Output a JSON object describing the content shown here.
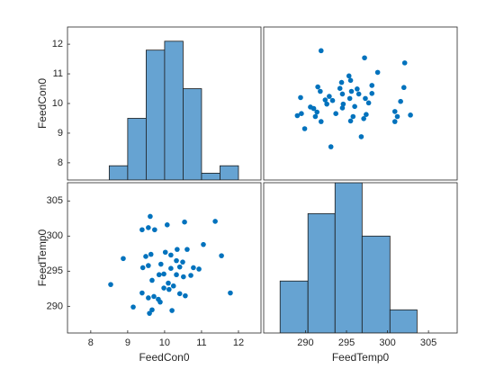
{
  "chart_data": [
    {
      "type": "histogram",
      "ylabel": "FeedCon0",
      "color": "#66a3d2",
      "bins": [
        8.5,
        9,
        9.5,
        10,
        10.5,
        11,
        11.5,
        12
      ],
      "values": [
        7.9,
        9.5,
        11.8,
        12.1,
        10.5,
        7.65,
        7.9
      ],
      "xlim": [
        7.37,
        12.61
      ],
      "ylim": [
        7.42,
        12.58
      ],
      "yticks": [
        8,
        9,
        10,
        11,
        12
      ]
    },
    {
      "type": "scatter",
      "color": "#0072bd",
      "x": [
        302.8,
        302.1,
        300.9,
        301.2,
        300.9,
        301.6,
        302.0,
        298.1,
        298.1,
        298.8,
        297.2,
        296.8,
        297.1,
        297.4,
        297.7,
        297.3,
        296.5,
        296.3,
        295.5,
        295.8,
        296.0,
        295.4,
        295.6,
        295.5,
        295.3,
        294.5,
        294.6,
        294.5,
        294.2,
        294.4,
        293.7,
        293.1,
        293.3,
        292.9,
        292.6,
        292.4,
        291.9,
        291.8,
        291.5,
        291.9,
        291.2,
        291.4,
        290.6,
        289.9,
        289.0,
        289.5,
        289.4,
        291.0
      ],
      "y": [
        9.61,
        11.37,
        9.39,
        9.56,
        9.73,
        10.07,
        10.54,
        10.34,
        10.61,
        11.05,
        11.54,
        8.88,
        9.49,
        9.63,
        10.02,
        10.17,
        10.32,
        10.49,
        9.41,
        9.56,
        9.9,
        10.17,
        10.41,
        10.78,
        10.93,
        9.85,
        9.98,
        10.32,
        10.51,
        10.71,
        9.66,
        8.54,
        10.1,
        10.24,
        9.98,
        10.12,
        9.39,
        10.41,
        10.56,
        11.78,
        9.56,
        9.71,
        9.88,
        9.15,
        9.59,
        9.66,
        10.2,
        9.83
      ],
      "xlim": [
        284.9,
        308.5
      ],
      "ylim": [
        7.42,
        12.58
      ]
    },
    {
      "type": "scatter",
      "xlabel": "FeedCon0",
      "ylabel": "FeedTemp0",
      "color": "#0072bd",
      "x": [
        9.61,
        11.37,
        9.39,
        9.56,
        9.73,
        10.07,
        10.54,
        10.34,
        10.61,
        11.05,
        11.54,
        8.88,
        9.49,
        9.63,
        10.02,
        10.17,
        10.32,
        10.49,
        9.41,
        9.56,
        9.9,
        10.17,
        10.41,
        10.78,
        10.93,
        9.85,
        9.98,
        10.32,
        10.51,
        10.71,
        9.66,
        8.54,
        10.1,
        10.24,
        9.98,
        10.12,
        9.39,
        10.41,
        10.56,
        11.78,
        9.56,
        9.71,
        9.88,
        9.15,
        9.59,
        9.66,
        10.2,
        9.83
      ],
      "y": [
        302.8,
        302.1,
        300.9,
        301.2,
        300.9,
        301.6,
        302.0,
        298.1,
        298.1,
        298.8,
        297.2,
        296.8,
        297.1,
        297.4,
        297.7,
        297.3,
        296.5,
        296.3,
        295.5,
        295.8,
        296.0,
        295.4,
        295.6,
        295.5,
        295.3,
        294.5,
        294.6,
        294.5,
        294.2,
        294.4,
        293.7,
        293.1,
        293.3,
        292.9,
        292.6,
        292.4,
        291.9,
        291.8,
        291.5,
        291.9,
        291.2,
        291.4,
        290.6,
        289.9,
        289.0,
        289.5,
        289.4,
        291.0
      ],
      "xlim": [
        7.37,
        12.61
      ],
      "ylim": [
        286.2,
        307.6
      ],
      "xticks": [
        8,
        9,
        10,
        11,
        12
      ],
      "yticks": [
        290,
        295,
        300,
        305
      ]
    },
    {
      "type": "histogram",
      "xlabel": "FeedTemp0",
      "color": "#66a3d2",
      "bins": [
        286.9,
        290.3,
        293.6,
        296.9,
        300.3,
        303.6
      ],
      "values": [
        293.6,
        303.2,
        307.6,
        300.0,
        289.5
      ],
      "xlim": [
        284.9,
        308.5
      ],
      "ylim": [
        286.2,
        307.6
      ],
      "xticks": [
        290,
        295,
        300,
        305
      ]
    }
  ]
}
